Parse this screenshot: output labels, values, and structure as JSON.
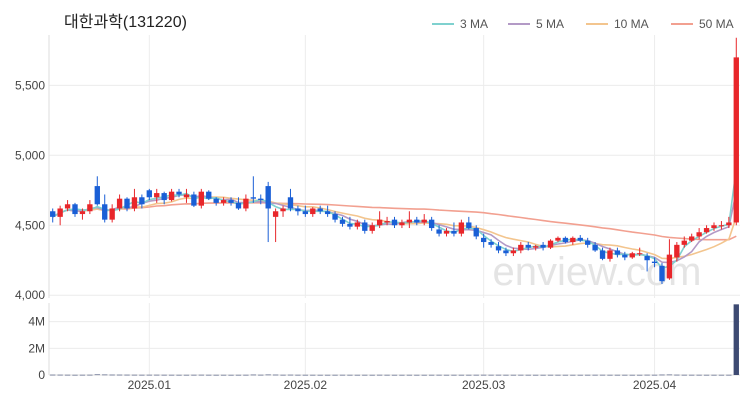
{
  "chart_data": {
    "type": "candlestick",
    "title": "대한과학(131220)",
    "watermark": "enview.com",
    "price_axis": {
      "ylim": [
        3980,
        5860
      ],
      "ticks": [
        4000,
        4500,
        5000,
        5500
      ],
      "tick_labels": [
        "4,000",
        "4,500",
        "5,000",
        "5,500"
      ]
    },
    "volume_axis": {
      "ylim": [
        0,
        5400000
      ],
      "ticks": [
        0,
        2000000,
        4000000
      ],
      "tick_labels": [
        "0",
        "2M",
        "4M"
      ]
    },
    "x_ticks": [
      {
        "index": 13,
        "label": "2025.01"
      },
      {
        "index": 34,
        "label": "2025.02"
      },
      {
        "index": 58,
        "label": "2025.03"
      },
      {
        "index": 81,
        "label": "2025.04"
      }
    ],
    "legend": [
      {
        "name": "3 MA",
        "color": "#7fd1cf"
      },
      {
        "name": "5 MA",
        "color": "#b39ac6"
      },
      {
        "name": "10 MA",
        "color": "#f3c58e"
      },
      {
        "name": "50 MA",
        "color": "#f2a090"
      }
    ],
    "colors": {
      "up": "#e8262a",
      "down": "#1a5fd6",
      "volume": "#3d4a72"
    },
    "ohlc": [
      [
        4600,
        4620,
        4520,
        4560
      ],
      [
        4560,
        4640,
        4500,
        4620
      ],
      [
        4620,
        4680,
        4600,
        4650
      ],
      [
        4650,
        4660,
        4560,
        4580
      ],
      [
        4580,
        4620,
        4540,
        4600
      ],
      [
        4600,
        4680,
        4580,
        4650
      ],
      [
        4780,
        4850,
        4640,
        4650
      ],
      [
        4650,
        4720,
        4520,
        4540
      ],
      [
        4540,
        4650,
        4520,
        4620
      ],
      [
        4620,
        4720,
        4600,
        4690
      ],
      [
        4690,
        4700,
        4600,
        4620
      ],
      [
        4620,
        4760,
        4600,
        4700
      ],
      [
        4700,
        4720,
        4620,
        4650
      ],
      [
        4750,
        4760,
        4680,
        4700
      ],
      [
        4700,
        4760,
        4660,
        4730
      ],
      [
        4730,
        4740,
        4650,
        4680
      ],
      [
        4680,
        4760,
        4670,
        4740
      ],
      [
        4740,
        4760,
        4700,
        4720
      ],
      [
        4700,
        4760,
        4660,
        4720
      ],
      [
        4720,
        4740,
        4630,
        4640
      ],
      [
        4640,
        4760,
        4620,
        4740
      ],
      [
        4740,
        4750,
        4680,
        4690
      ],
      [
        4690,
        4700,
        4640,
        4660
      ],
      [
        4660,
        4700,
        4640,
        4680
      ],
      [
        4680,
        4700,
        4640,
        4660
      ],
      [
        4660,
        4700,
        4610,
        4620
      ],
      [
        4620,
        4720,
        4600,
        4690
      ],
      [
        4700,
        4850,
        4660,
        4690
      ],
      [
        4690,
        4720,
        4650,
        4680
      ],
      [
        4780,
        4810,
        4380,
        4620
      ],
      [
        4560,
        4620,
        4380,
        4600
      ],
      [
        4600,
        4640,
        4560,
        4620
      ],
      [
        4700,
        4760,
        4600,
        4620
      ],
      [
        4620,
        4640,
        4570,
        4600
      ],
      [
        4600,
        4640,
        4560,
        4580
      ],
      [
        4580,
        4630,
        4560,
        4620
      ],
      [
        4620,
        4640,
        4580,
        4600
      ],
      [
        4600,
        4640,
        4560,
        4580
      ],
      [
        4580,
        4600,
        4520,
        4540
      ],
      [
        4540,
        4560,
        4490,
        4510
      ],
      [
        4510,
        4560,
        4470,
        4490
      ],
      [
        4490,
        4540,
        4470,
        4520
      ],
      [
        4520,
        4540,
        4440,
        4460
      ],
      [
        4460,
        4520,
        4440,
        4500
      ],
      [
        4500,
        4600,
        4480,
        4540
      ],
      [
        4520,
        4560,
        4500,
        4530
      ],
      [
        4540,
        4560,
        4480,
        4500
      ],
      [
        4500,
        4540,
        4480,
        4520
      ],
      [
        4520,
        4600,
        4480,
        4540
      ],
      [
        4540,
        4560,
        4500,
        4520
      ],
      [
        4520,
        4580,
        4500,
        4540
      ],
      [
        4540,
        4560,
        4460,
        4480
      ],
      [
        4470,
        4500,
        4420,
        4440
      ],
      [
        4440,
        4480,
        4420,
        4460
      ],
      [
        4460,
        4520,
        4420,
        4440
      ],
      [
        4440,
        4540,
        4420,
        4520
      ],
      [
        4520,
        4560,
        4470,
        4480
      ],
      [
        4480,
        4500,
        4400,
        4420
      ],
      [
        4410,
        4440,
        4340,
        4380
      ],
      [
        4380,
        4400,
        4340,
        4360
      ],
      [
        4350,
        4380,
        4300,
        4320
      ],
      [
        4320,
        4340,
        4280,
        4300
      ],
      [
        4300,
        4340,
        4280,
        4320
      ],
      [
        4320,
        4380,
        4300,
        4360
      ],
      [
        4360,
        4380,
        4320,
        4340
      ],
      [
        4340,
        4360,
        4320,
        4350
      ],
      [
        4360,
        4380,
        4320,
        4340
      ],
      [
        4340,
        4400,
        4330,
        4390
      ],
      [
        4390,
        4420,
        4380,
        4410
      ],
      [
        4410,
        4420,
        4370,
        4380
      ],
      [
        4380,
        4420,
        4360,
        4410
      ],
      [
        4410,
        4430,
        4380,
        4390
      ],
      [
        4390,
        4410,
        4340,
        4360
      ],
      [
        4360,
        4380,
        4310,
        4320
      ],
      [
        4320,
        4340,
        4250,
        4260
      ],
      [
        4260,
        4340,
        4240,
        4320
      ],
      [
        4320,
        4340,
        4270,
        4290
      ],
      [
        4290,
        4310,
        4250,
        4270
      ],
      [
        4270,
        4310,
        4260,
        4300
      ],
      [
        4300,
        4340,
        4280,
        4300
      ],
      [
        4280,
        4300,
        4170,
        4250
      ],
      [
        4240,
        4270,
        4200,
        4230
      ],
      [
        4210,
        4230,
        4080,
        4100
      ],
      [
        4120,
        4400,
        4110,
        4290
      ],
      [
        4270,
        4380,
        4240,
        4360
      ],
      [
        4360,
        4420,
        4340,
        4390
      ],
      [
        4390,
        4440,
        4380,
        4420
      ],
      [
        4420,
        4480,
        4400,
        4450
      ],
      [
        4450,
        4500,
        4440,
        4480
      ],
      [
        4480,
        4520,
        4460,
        4500
      ],
      [
        4500,
        4530,
        4470,
        4500
      ],
      [
        4500,
        4560,
        4480,
        4520
      ],
      [
        4520,
        5840,
        4500,
        5700
      ]
    ],
    "volume": [
      20000,
      18000,
      15000,
      12000,
      14000,
      16000,
      40000,
      30000,
      22000,
      20000,
      18000,
      16000,
      14000,
      15000,
      16000,
      14000,
      13000,
      12000,
      12000,
      14000,
      16000,
      13000,
      12000,
      12000,
      11000,
      12000,
      13000,
      25000,
      16000,
      30000,
      22000,
      14000,
      18000,
      13000,
      12000,
      12000,
      11000,
      11000,
      12000,
      13000,
      12000,
      11000,
      12000,
      11000,
      14000,
      12000,
      11000,
      11000,
      12000,
      11000,
      11000,
      12000,
      13000,
      11000,
      12000,
      12000,
      12000,
      13000,
      14000,
      13000,
      14000,
      12000,
      12000,
      13000,
      12000,
      11000,
      11000,
      12000,
      12000,
      11000,
      11000,
      11000,
      12000,
      13000,
      14000,
      12000,
      12000,
      12000,
      11000,
      11000,
      16000,
      13000,
      24000,
      30000,
      18000,
      14000,
      13000,
      13000,
      12000,
      12000,
      12000,
      13000,
      5300000
    ]
  }
}
